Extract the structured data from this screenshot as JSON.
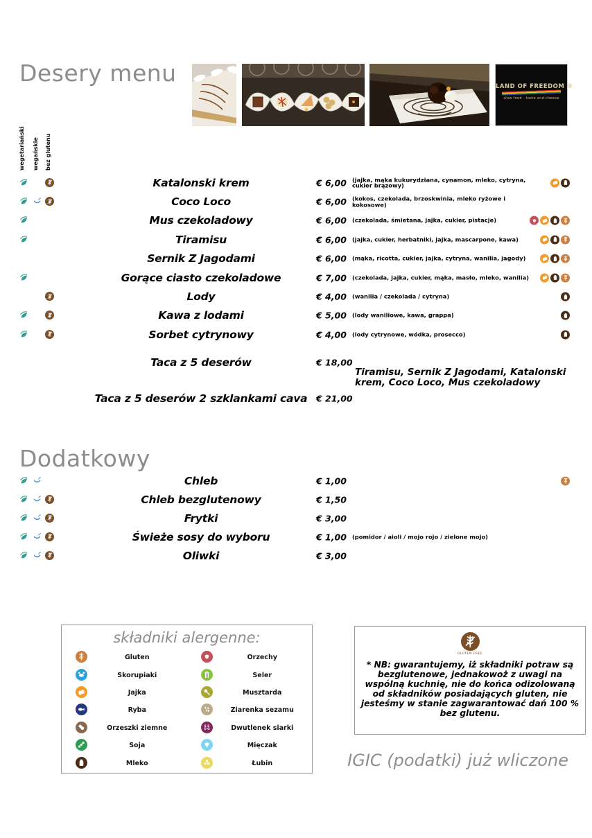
{
  "page": {
    "title": "Desery menu",
    "section2_title": "Dodatkowy",
    "tax_note": "IGIC (podatki) już wliczone"
  },
  "logo": {
    "title": "LAND OF FREEDOM ®",
    "subtitle": "slow food - taste and cheese"
  },
  "columns": {
    "vegetarian": "wegetariański",
    "vegan": "wegańskie",
    "gluten_free": "bez glutenu"
  },
  "desserts": [
    {
      "name": "Katalonski krem",
      "price": "€ 6,00",
      "desc": "(jajka, mąka kukurydziana, cynamon, mleko, cytryna, cukier brązowy)",
      "diet": [
        "vegetarian",
        "gluten_free"
      ],
      "allergens": [
        "eggs",
        "milk"
      ]
    },
    {
      "name": "Coco Loco",
      "price": "€ 6,00",
      "desc": "(kokos, czekolada, brzoskwinia, mleko ryżowe i kokosowe)",
      "diet": [
        "vegetarian",
        "vegan",
        "gluten_free"
      ],
      "allergens": []
    },
    {
      "name": "Mus czekoladowy",
      "price": "€ 6,00",
      "desc": "(czekolada, śmietana, jajka, cukier, pistacje)",
      "diet": [
        "vegetarian"
      ],
      "allergens": [
        "nuts",
        "eggs",
        "milk",
        "gluten"
      ]
    },
    {
      "name": "Tiramisu",
      "price": "€ 6,00",
      "desc": "(jajka, cukier, herbatniki, jajka, mascarpone, kawa)",
      "diet": [
        "vegetarian"
      ],
      "allergens": [
        "eggs",
        "milk",
        "gluten"
      ]
    },
    {
      "name": "Sernik Z Jagodami",
      "price": "€ 6,00",
      "desc": "(mąka, ricotta, cukier, jajka, cytryna, wanilia, jagody)",
      "diet": [],
      "allergens": [
        "eggs",
        "milk",
        "gluten"
      ]
    },
    {
      "name": "Gorące ciasto czekoladowe",
      "price": "€ 7,00",
      "desc": "(czekolada, jajka, cukier, mąka, masło, mleko, wanilia)",
      "diet": [
        "vegetarian"
      ],
      "allergens": [
        "eggs",
        "milk",
        "gluten"
      ]
    },
    {
      "name": "Lody",
      "price": "€ 4,00",
      "desc": "(wanilia / czekolada / cytryna)",
      "diet": [
        "gluten_free"
      ],
      "allergens": [
        "milk"
      ]
    },
    {
      "name": "Kawa z lodami",
      "price": "€ 5,00",
      "desc": "(lody waniliowe, kawa, grappa)",
      "diet": [
        "vegetarian",
        "gluten_free"
      ],
      "allergens": [
        "milk"
      ]
    },
    {
      "name": "Sorbet cytrynowy",
      "price": "€ 4,00",
      "desc": "(lody cytrynowe, wódka, prosecco)",
      "diet": [
        "vegetarian",
        "gluten_free"
      ],
      "allergens": [
        "milk"
      ]
    }
  ],
  "platters": [
    {
      "name": "Taca z 5 deserów",
      "price": "€ 18,00",
      "note": "Tiramisu, Sernik Z Jagodami,  Katalonski krem, Coco Loco,  Mus czekoladowy"
    },
    {
      "name": "Taca z 5 deserów 2 szklankami cava",
      "price": "€ 21,00"
    }
  ],
  "extras": [
    {
      "name": "Chleb",
      "price": "€ 1,00",
      "diet": [
        "vegetarian",
        "vegan"
      ],
      "allergens": [
        "gluten"
      ]
    },
    {
      "name": "Chleb bezglutenowy",
      "price": "€ 1,50",
      "diet": [
        "vegetarian",
        "vegan",
        "gluten_free"
      ],
      "allergens": []
    },
    {
      "name": "Frytki",
      "price": "€ 3,00",
      "diet": [
        "vegetarian",
        "vegan",
        "gluten_free"
      ],
      "allergens": []
    },
    {
      "name": "Świeże sosy do wyboru",
      "price": "€ 1,00",
      "desc": "(pomidor / aioli / mojo rojo / zielone mojo)",
      "diet": [
        "vegetarian",
        "vegan",
        "gluten_free"
      ],
      "allergens": []
    },
    {
      "name": "Oliwki",
      "price": "€ 3,00",
      "diet": [
        "vegetarian",
        "vegan",
        "gluten_free"
      ],
      "allergens": []
    }
  ],
  "legend": {
    "title": "składniki alergenne:",
    "left": [
      {
        "key": "gluten",
        "label": "Gluten"
      },
      {
        "key": "crustaceans",
        "label": "Skorupiaki"
      },
      {
        "key": "eggs",
        "label": "Jajka"
      },
      {
        "key": "fish",
        "label": "Ryba"
      },
      {
        "key": "peanuts",
        "label": "Orzeszki ziemne"
      },
      {
        "key": "soy",
        "label": "Soja"
      },
      {
        "key": "milk",
        "label": "Mleko"
      }
    ],
    "right": [
      {
        "key": "nuts",
        "label": "Orzechy"
      },
      {
        "key": "celery",
        "label": "Seler"
      },
      {
        "key": "mustard",
        "label": "Musztarda"
      },
      {
        "key": "sesame",
        "label": "Ziarenka sezamu"
      },
      {
        "key": "sulphites",
        "label": "Dwutlenek siarki"
      },
      {
        "key": "molluscs",
        "label": "Mięczak"
      },
      {
        "key": "lupin",
        "label": "Łubin"
      }
    ]
  },
  "nb": {
    "caption": "GLUTEN FREE",
    "text": "* NB: gwarantujemy, iż składniki potraw są bezglutenowe, jednakowoż z uwagi na wspólną kuchnię, nie do końca  odizolowaną od składników posiadających gluten, nie jesteśmy w stanie zagwarantować dań 100 % bez glutenu."
  },
  "colors": {
    "gluten": "#cd7f3f",
    "crustaceans": "#29a3dc",
    "eggs": "#f39a2a",
    "fish": "#21377e",
    "peanuts": "#8a6a4e",
    "soy": "#2c9c50",
    "milk": "#4b2d17",
    "nuts": "#c4505c",
    "celery": "#86c440",
    "mustard": "#a9a72f",
    "sesame": "#bba98a",
    "sulphites": "#84255c",
    "molluscs": "#7fd4ef",
    "lupin": "#ead95b",
    "vegetarian": "#2f9e8f",
    "vegan": "#4a8fd3",
    "gluten_free": "#7a4f28",
    "title_gray": "#8c8c8c"
  }
}
